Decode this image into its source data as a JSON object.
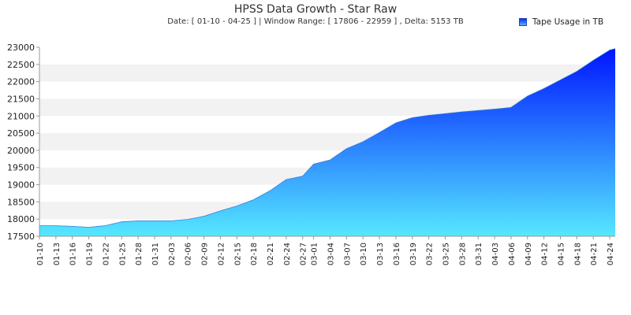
{
  "chart_data": {
    "type": "area",
    "title": "HPSS Data Growth - Star Raw",
    "subtitle": "Date: [ 01-10  -  04-25 ]  |  Window Range: [ 17806 - 22959 ] ,  Delta: 5153 TB",
    "xlabel": "",
    "ylabel": "",
    "ylim": [
      17500,
      23000
    ],
    "yticks": [
      17500,
      18000,
      18500,
      19000,
      19500,
      20000,
      20500,
      21000,
      21500,
      22000,
      22500,
      23000
    ],
    "grid": "alternating horizontal bands",
    "legend_position": "top-right",
    "colors": {
      "area_top": "#0015ff",
      "area_bottom": "#55e8ff",
      "band": "#f2f2f2",
      "axis": "#999999"
    },
    "x_tick_labels": [
      "01-10",
      "01-13",
      "01-16",
      "01-19",
      "01-22",
      "01-25",
      "01-28",
      "01-31",
      "02-03",
      "02-06",
      "02-09",
      "02-12",
      "02-15",
      "02-18",
      "02-21",
      "02-24",
      "02-27",
      "03-01",
      "03-04",
      "03-07",
      "03-10",
      "03-13",
      "03-16",
      "03-19",
      "03-22",
      "03-25",
      "03-28",
      "03-31",
      "04-03",
      "04-06",
      "04-09",
      "04-12",
      "04-15",
      "04-18",
      "04-21",
      "04-24"
    ],
    "series": [
      {
        "name": "Tape Usage in TB",
        "x": [
          "01-10",
          "01-13",
          "01-16",
          "01-19",
          "01-22",
          "01-25",
          "01-28",
          "01-31",
          "02-03",
          "02-06",
          "02-09",
          "02-12",
          "02-15",
          "02-18",
          "02-21",
          "02-24",
          "02-27",
          "03-01",
          "03-04",
          "03-07",
          "03-10",
          "03-13",
          "03-16",
          "03-19",
          "03-22",
          "03-25",
          "03-28",
          "03-31",
          "04-03",
          "04-06",
          "04-09",
          "04-12",
          "04-15",
          "04-18",
          "04-21",
          "04-24",
          "04-25"
        ],
        "values": [
          17806,
          17806,
          17790,
          17760,
          17810,
          17920,
          17950,
          17950,
          17950,
          17990,
          18080,
          18240,
          18380,
          18560,
          18820,
          19150,
          19250,
          19600,
          19720,
          20050,
          20250,
          20520,
          20800,
          20950,
          21020,
          21070,
          21120,
          21160,
          21200,
          21250,
          21580,
          21800,
          22050,
          22300,
          22620,
          22920,
          22959
        ]
      }
    ]
  }
}
